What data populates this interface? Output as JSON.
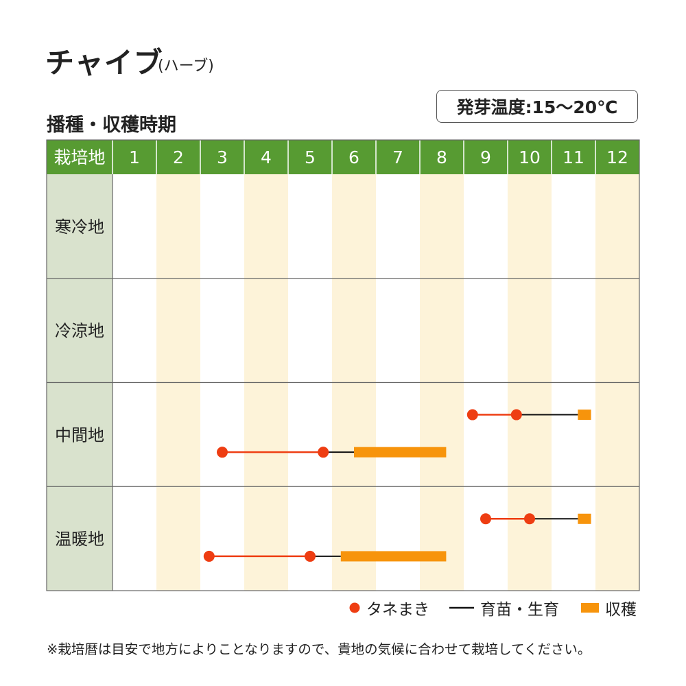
{
  "title": "チャイブ",
  "subtitle": "(ハーブ)",
  "section_title": "播種・収穫時期",
  "germination": "発芽温度:15～20℃",
  "legend": {
    "sowing": "タネまき",
    "growing": "育苗・生育",
    "harvest": "収穫"
  },
  "footnote": "※栽培暦は目安で地方によりことなりますので、貴地の気候に合わせて栽培してください。",
  "colors": {
    "header_green": "#579b32",
    "region_col_bg": "#d9e2cd",
    "alt_month_bg": "#fdf3d9",
    "sowing_red": "#ee3d12",
    "harvest_orange": "#f7940c",
    "growing_black": "#111111"
  },
  "chart_data": {
    "type": "table",
    "header_label": "栽培地",
    "months": [
      "1",
      "2",
      "3",
      "4",
      "5",
      "6",
      "7",
      "8",
      "9",
      "10",
      "11",
      "12"
    ],
    "regions": [
      {
        "name": "寒冷地",
        "rows": []
      },
      {
        "name": "冷涼地",
        "rows": []
      },
      {
        "name": "中間地",
        "rows": [
          {
            "sowing": [
              9.2,
              10.2
            ],
            "growing": [
              10.2,
              11.6
            ],
            "harvest": [
              11.6,
              11.9
            ]
          },
          {
            "sowing": [
              3.5,
              5.8
            ],
            "growing": [
              5.8,
              6.5
            ],
            "harvest": [
              6.5,
              8.6
            ]
          }
        ]
      },
      {
        "name": "温暖地",
        "rows": [
          {
            "sowing": [
              9.5,
              10.5
            ],
            "growing": [
              10.5,
              11.6
            ],
            "harvest": [
              11.6,
              11.9
            ]
          },
          {
            "sowing": [
              3.2,
              5.5
            ],
            "growing": [
              5.5,
              6.2
            ],
            "harvest": [
              6.2,
              8.6
            ]
          }
        ]
      }
    ]
  }
}
